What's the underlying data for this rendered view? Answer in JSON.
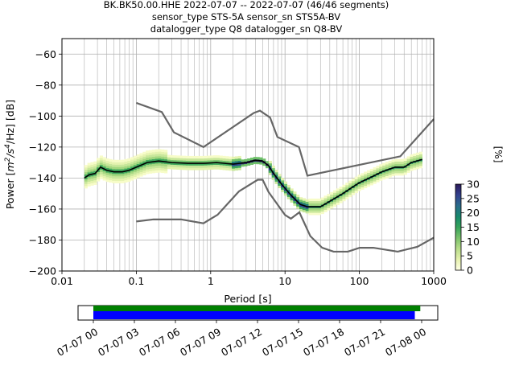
{
  "chart_data": [
    {
      "type": "heatmap",
      "title_lines": [
        "BK.BK50.00.HHE   2022-07-07 -- 2022-07-07  (46/46 segments)",
        "sensor_type STS-5A sensor_sn STS5A-BV",
        "datalogger_type Q8 datalogger_sn Q8-BV"
      ],
      "xlabel": "Period [s]",
      "ylabel_prefix": "Power [",
      "ylabel_unit_base": "m",
      "ylabel_exp1": "2",
      "ylabel_mid": "/s",
      "ylabel_exp2": "4",
      "ylabel_suffix": "/Hz] [dB]",
      "x_scale": "log",
      "xlim": [
        0.01,
        1000
      ],
      "ylim": [
        -200,
        -50
      ],
      "x_ticks": [
        {
          "value": 0.01,
          "label": "0.01"
        },
        {
          "value": 0.1,
          "label": "0.1"
        },
        {
          "value": 1,
          "label": "1"
        },
        {
          "value": 10,
          "label": "10"
        },
        {
          "value": 100,
          "label": "100"
        },
        {
          "value": 1000,
          "label": "1000"
        }
      ],
      "y_ticks": [
        {
          "value": -60,
          "label": "−60"
        },
        {
          "value": -80,
          "label": "−80"
        },
        {
          "value": -100,
          "label": "−100"
        },
        {
          "value": -120,
          "label": "−120"
        },
        {
          "value": -140,
          "label": "−140"
        },
        {
          "value": -160,
          "label": "−160"
        },
        {
          "value": -180,
          "label": "−180"
        },
        {
          "value": -200,
          "label": "−200"
        }
      ],
      "grid": true,
      "noise_models": {
        "high": [
          [
            0.1,
            -91.5
          ],
          [
            0.22,
            -97.4
          ],
          [
            0.32,
            -110.5
          ],
          [
            0.8,
            -120
          ],
          [
            3.8,
            -98
          ],
          [
            4.6,
            -96.5
          ],
          [
            6.3,
            -101
          ],
          [
            7.9,
            -113.5
          ],
          [
            15.4,
            -120
          ],
          [
            20,
            -138.5
          ],
          [
            354.8,
            -126
          ],
          [
            10000,
            -48.5
          ]
        ],
        "low": [
          [
            0.1,
            -168
          ],
          [
            0.17,
            -166.7
          ],
          [
            0.4,
            -166.7
          ],
          [
            0.8,
            -169.2
          ],
          [
            1.24,
            -163.7
          ],
          [
            2.4,
            -148.6
          ],
          [
            4.3,
            -141.1
          ],
          [
            5,
            -141.1
          ],
          [
            6,
            -149
          ],
          [
            10,
            -163.8
          ],
          [
            12,
            -166.2
          ],
          [
            15.6,
            -162.1
          ],
          [
            21.9,
            -177.5
          ],
          [
            31.6,
            -185
          ],
          [
            45,
            -187.5
          ],
          [
            70,
            -187.5
          ],
          [
            101,
            -185
          ],
          [
            154,
            -185
          ],
          [
            328,
            -187.5
          ],
          [
            600,
            -184.4
          ],
          [
            1000,
            -178.5
          ]
        ]
      },
      "mean_curve": [
        [
          0.02,
          -140
        ],
        [
          0.023,
          -138
        ],
        [
          0.028,
          -137
        ],
        [
          0.033,
          -133
        ],
        [
          0.04,
          -135
        ],
        [
          0.05,
          -136
        ],
        [
          0.065,
          -136
        ],
        [
          0.08,
          -135
        ],
        [
          0.1,
          -133
        ],
        [
          0.14,
          -130
        ],
        [
          0.2,
          -129
        ],
        [
          0.3,
          -130
        ],
        [
          0.5,
          -130.5
        ],
        [
          0.8,
          -130.5
        ],
        [
          1.2,
          -130
        ],
        [
          2,
          -131
        ],
        [
          3,
          -130
        ],
        [
          4,
          -128.5
        ],
        [
          5,
          -129
        ],
        [
          6,
          -132
        ],
        [
          7,
          -137
        ],
        [
          9,
          -144
        ],
        [
          12,
          -151
        ],
        [
          16,
          -157
        ],
        [
          20,
          -158.5
        ],
        [
          30,
          -158.5
        ],
        [
          40,
          -155
        ],
        [
          60,
          -150
        ],
        [
          80,
          -146
        ],
        [
          100,
          -143
        ],
        [
          150,
          -139
        ],
        [
          200,
          -136
        ],
        [
          300,
          -133
        ],
        [
          400,
          -133
        ],
        [
          500,
          -130
        ],
        [
          700,
          -128
        ]
      ],
      "colorbar": {
        "label": "[%]",
        "min": 0,
        "max": 30,
        "ticks": [
          {
            "value": 0,
            "label": "0"
          },
          {
            "value": 5,
            "label": "5"
          },
          {
            "value": 10,
            "label": "10"
          },
          {
            "value": 15,
            "label": "15"
          },
          {
            "value": 20,
            "label": "20"
          },
          {
            "value": 25,
            "label": "25"
          },
          {
            "value": 30,
            "label": "30"
          }
        ]
      },
      "colors": {
        "high_low_model": "#666666",
        "mean": "#000000",
        "grid": "#b0b0b0"
      }
    },
    {
      "type": "timeline",
      "x_ticks": [
        "07-07 00",
        "07-07 03",
        "07-07 06",
        "07-07 09",
        "07-07 12",
        "07-07 15",
        "07-07 18",
        "07-07 21",
        "07-08 00"
      ],
      "bars": [
        {
          "name": "data",
          "start_hours": 0,
          "end_hours": 23.9,
          "color": "#008000"
        },
        {
          "name": "used",
          "start_hours": 0,
          "end_hours": 23.5,
          "color": "#0000ff"
        }
      ]
    }
  ]
}
